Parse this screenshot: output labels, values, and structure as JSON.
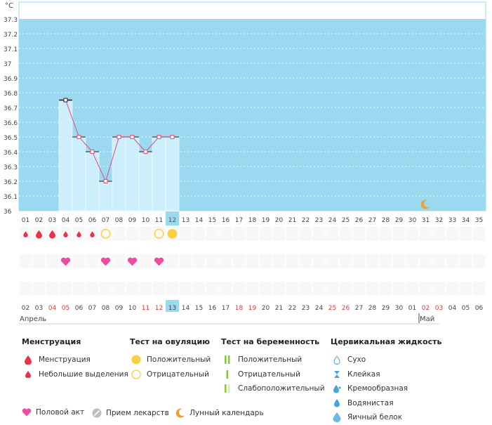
{
  "chart_data": {
    "type": "bar",
    "unit_label": "°C",
    "ylim": [
      36,
      37.3
    ],
    "yticks": [
      "37.3",
      "37.2",
      "37.1",
      "37",
      "36.9",
      "36.8",
      "36.7",
      "36.6",
      "36.5",
      "36.4",
      "36.3",
      "36.2",
      "36.1",
      "36"
    ],
    "cycle_days": [
      "01",
      "02",
      "03",
      "04",
      "05",
      "06",
      "07",
      "08",
      "09",
      "10",
      "11",
      "12",
      "13",
      "14",
      "15",
      "16",
      "17",
      "18",
      "19",
      "20",
      "21",
      "22",
      "23",
      "24",
      "25",
      "26",
      "27",
      "28",
      "29",
      "30",
      "31",
      "32",
      "33",
      "34",
      "35"
    ],
    "current_cycle_day": "12",
    "temperatures": [
      {
        "day": 4,
        "value": 36.75
      },
      {
        "day": 5,
        "value": 36.5
      },
      {
        "day": 6,
        "value": 36.4
      },
      {
        "day": 7,
        "value": 36.2
      },
      {
        "day": 8,
        "value": 36.5
      },
      {
        "day": 9,
        "value": 36.5
      },
      {
        "day": 10,
        "value": 36.4
      },
      {
        "day": 11,
        "value": 36.5
      },
      {
        "day": 12,
        "value": 36.5
      }
    ],
    "cover_line": 36.75,
    "moon_day": 31,
    "colors": {
      "plot_bg": "#9ad9f0",
      "bar_fill": "#cdeefb",
      "line": "#e64a7a",
      "today_bg": "#9ad9f0",
      "red_date": "#e03a3a",
      "period": "#e8334a",
      "ovulation": "#f7d040",
      "heart": "#ee4aa0",
      "moon": "#f0a030"
    },
    "markers": {
      "period_full": [
        2,
        3
      ],
      "period_light": [
        1,
        4,
        5,
        6
      ],
      "ovulation_negative": [
        7,
        11
      ],
      "ovulation_positive": [
        12
      ],
      "intercourse": [
        4,
        7,
        9,
        11
      ]
    },
    "dates": [
      {
        "d": "02",
        "red": false
      },
      {
        "d": "03",
        "red": false
      },
      {
        "d": "04",
        "red": true
      },
      {
        "d": "05",
        "red": true
      },
      {
        "d": "06",
        "red": false
      },
      {
        "d": "07",
        "red": false
      },
      {
        "d": "08",
        "red": false
      },
      {
        "d": "09",
        "red": false
      },
      {
        "d": "10",
        "red": false
      },
      {
        "d": "11",
        "red": true
      },
      {
        "d": "12",
        "red": true
      },
      {
        "d": "13",
        "red": false
      },
      {
        "d": "14",
        "red": false
      },
      {
        "d": "15",
        "red": false
      },
      {
        "d": "16",
        "red": false
      },
      {
        "d": "17",
        "red": false
      },
      {
        "d": "18",
        "red": true
      },
      {
        "d": "19",
        "red": true
      },
      {
        "d": "20",
        "red": false
      },
      {
        "d": "21",
        "red": false
      },
      {
        "d": "22",
        "red": false
      },
      {
        "d": "23",
        "red": false
      },
      {
        "d": "24",
        "red": false
      },
      {
        "d": "25",
        "red": true
      },
      {
        "d": "26",
        "red": true
      },
      {
        "d": "27",
        "red": false
      },
      {
        "d": "28",
        "red": false
      },
      {
        "d": "29",
        "red": false
      },
      {
        "d": "30",
        "red": false
      },
      {
        "d": "01",
        "red": false
      },
      {
        "d": "02",
        "red": true
      },
      {
        "d": "03",
        "red": true
      },
      {
        "d": "04",
        "red": false
      },
      {
        "d": "05",
        "red": false
      },
      {
        "d": "06",
        "red": false
      }
    ],
    "today_date": "13",
    "months": [
      {
        "label": "Апрель",
        "start_index": 0
      },
      {
        "label": "Май",
        "start_index": 30
      }
    ]
  },
  "legend": {
    "menstruation": {
      "title": "Менструация",
      "items": [
        "Менструация",
        "Небольшие выделения"
      ]
    },
    "ovulation": {
      "title": "Тест на овуляцию",
      "items": [
        "Положительный",
        "Отрицательный"
      ]
    },
    "pregnancy": {
      "title": "Тест на беременность",
      "items": [
        "Положительный",
        "Отрицательный",
        "Слабоположительный"
      ]
    },
    "cervical": {
      "title": "Цервикальная жидкость",
      "items": [
        "Сухо",
        "Клейкая",
        "Кремообразная",
        "Водянистая",
        "Яичный белок"
      ]
    },
    "bottom": [
      "Половой акт",
      "Прием лекарств",
      "Лунный календарь"
    ]
  }
}
